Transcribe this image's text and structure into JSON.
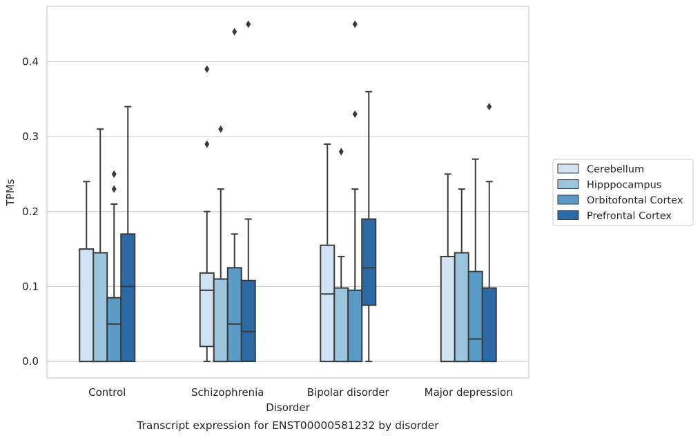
{
  "chart_data": {
    "type": "box",
    "caption": "Transcript expression for ENST00000581232 by disorder",
    "xlabel": "Disorder",
    "ylabel": "TPMs",
    "ylim": [
      -0.022,
      0.474
    ],
    "yticks": [
      0.0,
      0.1,
      0.2,
      0.3,
      0.4
    ],
    "ytick_labels": [
      "0.0",
      "0.1",
      "0.2",
      "0.3",
      "0.4"
    ],
    "grid": "horizontal",
    "legend_position": "right",
    "categories": [
      "Control",
      "Schizophrenia",
      "Bipolar disorder",
      "Major depression"
    ],
    "series": [
      {
        "name": "Cerebellum",
        "color": "#d1e2f2",
        "boxes": [
          {
            "whisker_low": 0.0,
            "q1": 0.0,
            "median": 0.0,
            "q3": 0.15,
            "whisker_high": 0.24,
            "outliers": []
          },
          {
            "whisker_low": 0.0,
            "q1": 0.02,
            "median": 0.095,
            "q3": 0.118,
            "whisker_high": 0.2,
            "outliers": [
              0.29,
              0.39
            ]
          },
          {
            "whisker_low": 0.0,
            "q1": 0.0,
            "median": 0.09,
            "q3": 0.155,
            "whisker_high": 0.29,
            "outliers": []
          },
          {
            "whisker_low": 0.0,
            "q1": 0.0,
            "median": 0.0,
            "q3": 0.14,
            "whisker_high": 0.25,
            "outliers": []
          }
        ]
      },
      {
        "name": "Hipppocampus",
        "color": "#9ac3dc",
        "boxes": [
          {
            "whisker_low": 0.0,
            "q1": 0.0,
            "median": 0.0,
            "q3": 0.145,
            "whisker_high": 0.31,
            "outliers": []
          },
          {
            "whisker_low": 0.0,
            "q1": 0.0,
            "median": 0.0,
            "q3": 0.11,
            "whisker_high": 0.23,
            "outliers": [
              0.31
            ]
          },
          {
            "whisker_low": 0.0,
            "q1": 0.0,
            "median": 0.0,
            "q3": 0.098,
            "whisker_high": 0.14,
            "outliers": [
              0.28
            ]
          },
          {
            "whisker_low": 0.0,
            "q1": 0.0,
            "median": 0.0,
            "q3": 0.145,
            "whisker_high": 0.23,
            "outliers": []
          }
        ]
      },
      {
        "name": "Orbitofontal Cortex",
        "color": "#5a9ac6",
        "boxes": [
          {
            "whisker_low": 0.0,
            "q1": 0.0,
            "median": 0.05,
            "q3": 0.085,
            "whisker_high": 0.21,
            "outliers": [
              0.23,
              0.25
            ]
          },
          {
            "whisker_low": 0.0,
            "q1": 0.0,
            "median": 0.05,
            "q3": 0.125,
            "whisker_high": 0.17,
            "outliers": [
              0.44
            ]
          },
          {
            "whisker_low": 0.0,
            "q1": 0.0,
            "median": 0.0,
            "q3": 0.095,
            "whisker_high": 0.23,
            "outliers": [
              0.33,
              0.45
            ]
          },
          {
            "whisker_low": 0.0,
            "q1": 0.0,
            "median": 0.03,
            "q3": 0.12,
            "whisker_high": 0.27,
            "outliers": []
          }
        ]
      },
      {
        "name": "Prefrontal Cortex",
        "color": "#2b6aa6",
        "boxes": [
          {
            "whisker_low": 0.0,
            "q1": 0.0,
            "median": 0.1,
            "q3": 0.17,
            "whisker_high": 0.34,
            "outliers": []
          },
          {
            "whisker_low": 0.0,
            "q1": 0.0,
            "median": 0.04,
            "q3": 0.108,
            "whisker_high": 0.19,
            "outliers": [
              0.45
            ]
          },
          {
            "whisker_low": 0.0,
            "q1": 0.075,
            "median": 0.125,
            "q3": 0.19,
            "whisker_high": 0.36,
            "outliers": []
          },
          {
            "whisker_low": 0.0,
            "q1": 0.0,
            "median": 0.0,
            "q3": 0.098,
            "whisker_high": 0.24,
            "outliers": [
              0.34
            ]
          }
        ]
      }
    ]
  }
}
